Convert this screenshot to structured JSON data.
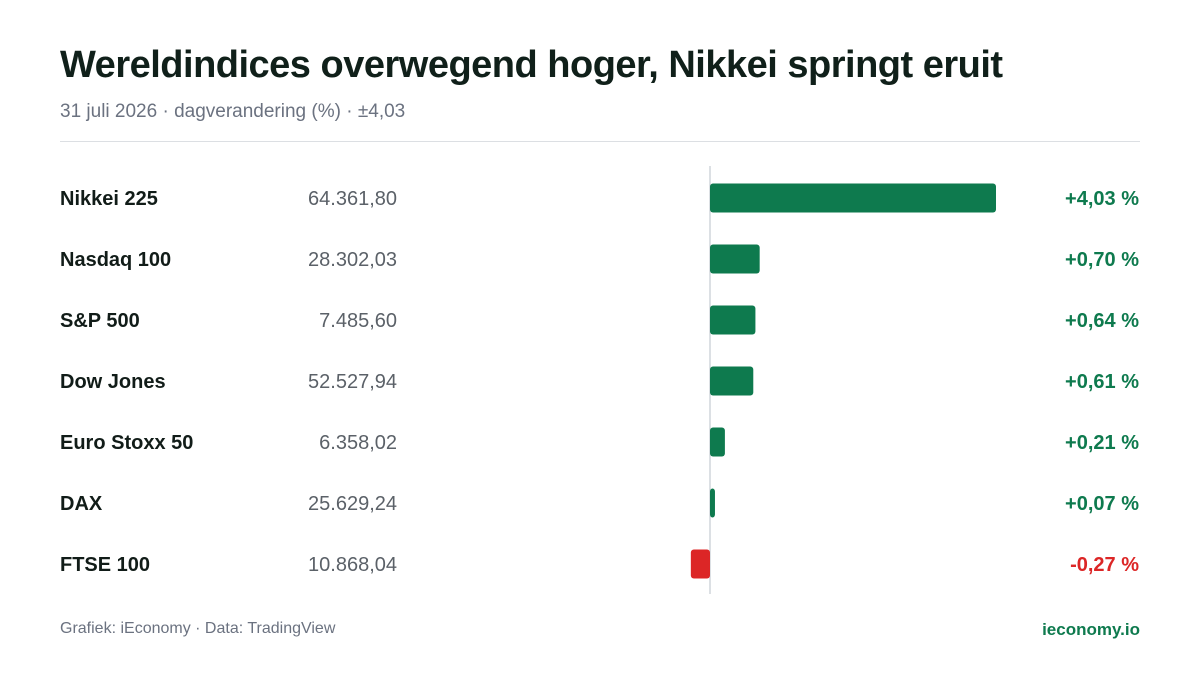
{
  "title": "Wereldindices overwegend hoger, Nikkei springt eruit",
  "subtitle": "31 juli 2026 · dagverandering (%) · ±4,03",
  "footer": {
    "source": "Grafiek: iEconomy · Data: TradingView",
    "brand": "ieconomy.io"
  },
  "colors": {
    "positive": "#0e7a4e",
    "negative": "#dc2626",
    "axis": "#d1d5db",
    "name_text": "#111c18",
    "level_text": "#5b6168"
  },
  "chart_data": {
    "type": "bar",
    "orientation": "horizontal",
    "xlim": [
      -4.03,
      4.03
    ],
    "grid": false,
    "categories": [
      "Nikkei 225",
      "Nasdaq 100",
      "S&P 500",
      "Dow Jones",
      "Euro Stoxx 50",
      "DAX",
      "FTSE 100"
    ],
    "levels": [
      "64.361,80",
      "28.302,03",
      "7.485,60",
      "52.527,94",
      "6.358,02",
      "25.629,24",
      "10.868,04"
    ],
    "values": [
      4.03,
      0.7,
      0.64,
      0.61,
      0.21,
      0.07,
      -0.27
    ],
    "value_labels": [
      "+4,03 %",
      "+0,70 %",
      "+0,64 %",
      "+0,61 %",
      "+0,21 %",
      "+0,07 %",
      "-0,27 %"
    ]
  }
}
